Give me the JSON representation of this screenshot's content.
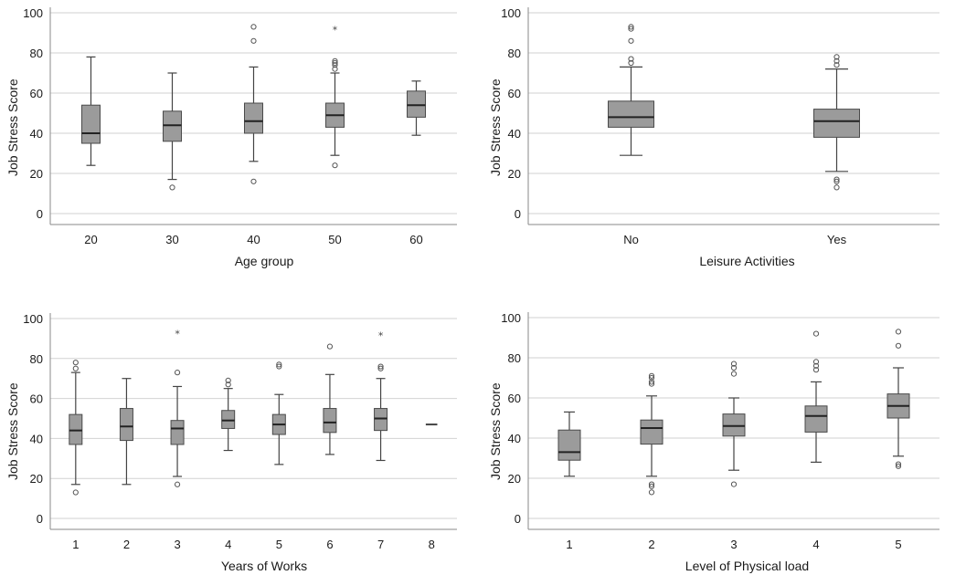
{
  "chart_data": [
    {
      "type": "boxplot",
      "xlabel": "Age group",
      "ylabel": "Job Stress Score",
      "ylim": [
        0,
        100
      ],
      "yticks": [
        0,
        20,
        40,
        60,
        80,
        100
      ],
      "grid": true,
      "categories": [
        "20",
        "30",
        "40",
        "50",
        "60"
      ],
      "boxes": [
        {
          "min": 24,
          "q1": 35,
          "median": 40,
          "q3": 54,
          "max": 78,
          "outliers": [],
          "extremes": []
        },
        {
          "min": 17,
          "q1": 36,
          "median": 44,
          "q3": 51,
          "max": 70,
          "outliers": [
            13
          ],
          "extremes": []
        },
        {
          "min": 26,
          "q1": 40,
          "median": 46,
          "q3": 55,
          "max": 73,
          "outliers": [
            16,
            86,
            93
          ],
          "extremes": []
        },
        {
          "min": 29,
          "q1": 43,
          "median": 49,
          "q3": 55,
          "max": 70,
          "outliers": [
            24,
            72,
            74,
            75,
            76
          ],
          "extremes": [
            92
          ]
        },
        {
          "min": 39,
          "q1": 48,
          "median": 54,
          "q3": 61,
          "max": 66,
          "outliers": [],
          "extremes": []
        }
      ]
    },
    {
      "type": "boxplot",
      "xlabel": "Leisure Activities",
      "ylabel": "Job Stress Score",
      "ylim": [
        0,
        100
      ],
      "yticks": [
        0,
        20,
        40,
        60,
        80,
        100
      ],
      "grid": true,
      "categories": [
        "No",
        "Yes"
      ],
      "boxes": [
        {
          "min": 29,
          "q1": 43,
          "median": 48,
          "q3": 56,
          "max": 73,
          "outliers": [
            75,
            77,
            86,
            92,
            93
          ],
          "extremes": []
        },
        {
          "min": 21,
          "q1": 38,
          "median": 46,
          "q3": 52,
          "max": 72,
          "outliers": [
            13,
            16,
            17,
            74,
            76,
            78
          ],
          "extremes": []
        }
      ]
    },
    {
      "type": "boxplot",
      "xlabel": "Years of Works",
      "ylabel": "Job Stress Score",
      "ylim": [
        0,
        100
      ],
      "yticks": [
        0,
        20,
        40,
        60,
        80,
        100
      ],
      "grid": true,
      "categories": [
        "1",
        "2",
        "3",
        "4",
        "5",
        "6",
        "7",
        "8"
      ],
      "boxes": [
        {
          "min": 17,
          "q1": 37,
          "median": 44,
          "q3": 52,
          "max": 73,
          "outliers": [
            13,
            75,
            78
          ],
          "extremes": []
        },
        {
          "min": 17,
          "q1": 39,
          "median": 46,
          "q3": 55,
          "max": 70,
          "outliers": [],
          "extremes": []
        },
        {
          "min": 21,
          "q1": 37,
          "median": 45,
          "q3": 49,
          "max": 66,
          "outliers": [
            17,
            73
          ],
          "extremes": [
            93
          ]
        },
        {
          "min": 34,
          "q1": 45,
          "median": 49,
          "q3": 54,
          "max": 65,
          "outliers": [
            67,
            69
          ],
          "extremes": []
        },
        {
          "min": 27,
          "q1": 42,
          "median": 47,
          "q3": 52,
          "max": 62,
          "outliers": [
            76,
            77
          ],
          "extremes": []
        },
        {
          "min": 32,
          "q1": 43,
          "median": 48,
          "q3": 55,
          "max": 72,
          "outliers": [
            86
          ],
          "extremes": []
        },
        {
          "min": 29,
          "q1": 44,
          "median": 50,
          "q3": 55,
          "max": 70,
          "outliers": [
            75,
            76
          ],
          "extremes": [
            92
          ]
        },
        {
          "min": 47,
          "q1": 47,
          "median": 47,
          "q3": 47,
          "max": 47,
          "outliers": [],
          "extremes": []
        }
      ]
    },
    {
      "type": "boxplot",
      "xlabel": "Level of Physical load",
      "ylabel": "Job Stress Score",
      "ylim": [
        0,
        100
      ],
      "yticks": [
        0,
        20,
        40,
        60,
        80,
        100
      ],
      "grid": true,
      "categories": [
        "1",
        "2",
        "3",
        "4",
        "5"
      ],
      "boxes": [
        {
          "min": 21,
          "q1": 29,
          "median": 33,
          "q3": 44,
          "max": 53,
          "outliers": [],
          "extremes": []
        },
        {
          "min": 21,
          "q1": 37,
          "median": 45,
          "q3": 49,
          "max": 61,
          "outliers": [
            13,
            16,
            17,
            67,
            68,
            70,
            71
          ],
          "extremes": []
        },
        {
          "min": 24,
          "q1": 41,
          "median": 46,
          "q3": 52,
          "max": 60,
          "outliers": [
            17,
            72,
            75,
            77
          ],
          "extremes": []
        },
        {
          "min": 28,
          "q1": 43,
          "median": 51,
          "q3": 56,
          "max": 68,
          "outliers": [
            74,
            76,
            78,
            92
          ],
          "extremes": []
        },
        {
          "min": 31,
          "q1": 50,
          "median": 56,
          "q3": 62,
          "max": 75,
          "outliers": [
            26,
            27,
            86,
            93
          ],
          "extremes": []
        }
      ]
    }
  ]
}
